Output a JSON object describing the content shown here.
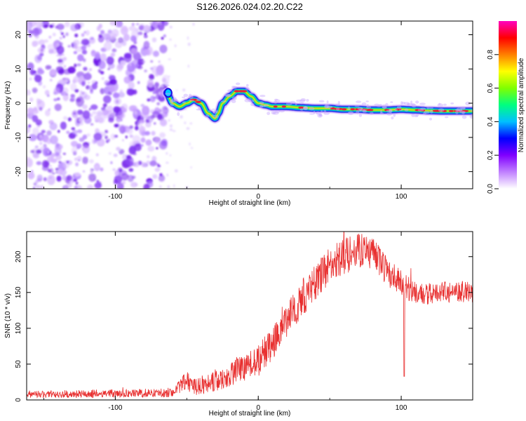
{
  "title": "S126.2026.024.02.20.C22",
  "colors": {
    "background": "#ffffff",
    "snr_line": "#e83030",
    "noise_purple": "#7a2cf0",
    "track_core": "#e8203a",
    "track_edge": "#1a10e0"
  },
  "chart_data": [
    {
      "type": "heatmap",
      "title": "S126.2026.024.02.20.C22",
      "xlabel": "Height of straight line (km)",
      "ylabel": "Frequency (Hz)",
      "xlim": [
        -162,
        150
      ],
      "ylim": [
        -25,
        24
      ],
      "xticks": [
        -100,
        0,
        100
      ],
      "yticks": [
        -20,
        -10,
        0,
        10,
        20
      ],
      "colorbar": {
        "label": "Normalized spectral amplitude",
        "range": [
          0,
          1
        ],
        "ticks": [
          "0.0",
          "0.2",
          "0.4",
          "0.6",
          "0.8"
        ],
        "tick_values": [
          0,
          0.2,
          0.4,
          0.6,
          0.8
        ],
        "colormap": [
          "#ffffff",
          "#c080ff",
          "#8000ff",
          "#0000ff",
          "#00c0ff",
          "#00ff80",
          "#80ff00",
          "#ffff00",
          "#ff8000",
          "#ff0000",
          "#ff00c0"
        ]
      },
      "noise_region_x": [
        -162,
        -64
      ],
      "track": {
        "x": [
          -64,
          -60,
          -55,
          -50,
          -45,
          -40,
          -35,
          -30,
          -28,
          -25,
          -20,
          -15,
          -10,
          -5,
          0,
          5,
          10,
          20,
          30,
          40,
          50,
          60,
          70,
          80,
          90,
          100,
          110,
          120,
          130,
          140,
          150
        ],
        "freq": [
          3,
          0,
          -1,
          0,
          1,
          0,
          -3,
          -4.5,
          -3,
          0,
          2,
          3.5,
          3.5,
          2,
          0,
          -0.5,
          -1,
          -1,
          -1.3,
          -1.5,
          -1.5,
          -1.8,
          -1.8,
          -2,
          -2,
          -1.8,
          -2,
          -2.2,
          -2.3,
          -2.3,
          -2.3
        ]
      }
    },
    {
      "type": "line",
      "xlabel": "Height of straight line (km)",
      "ylabel": "SNR (10 * v/v)",
      "xlim": [
        -162,
        150
      ],
      "ylim": [
        0,
        235
      ],
      "xticks": [
        -100,
        0,
        100
      ],
      "yticks": [
        0,
        50,
        100,
        150,
        200
      ],
      "envelope": {
        "x": [
          -162,
          -60,
          -50,
          -45,
          -40,
          -30,
          -20,
          -10,
          0,
          10,
          20,
          30,
          40,
          50,
          60,
          70,
          80,
          90,
          100,
          110,
          120,
          130,
          140,
          150
        ],
        "mean": [
          8,
          10,
          28,
          18,
          20,
          28,
          36,
          46,
          55,
          80,
          110,
          140,
          165,
          188,
          200,
          210,
          205,
          180,
          162,
          150,
          148,
          150,
          152,
          150
        ],
        "noise": [
          5,
          6,
          14,
          12,
          12,
          16,
          18,
          20,
          22,
          24,
          25,
          26,
          26,
          26,
          26,
          26,
          22,
          20,
          18,
          16,
          15,
          15,
          15,
          15
        ]
      },
      "dips": [
        {
          "x": 102,
          "y": 33
        }
      ]
    }
  ]
}
